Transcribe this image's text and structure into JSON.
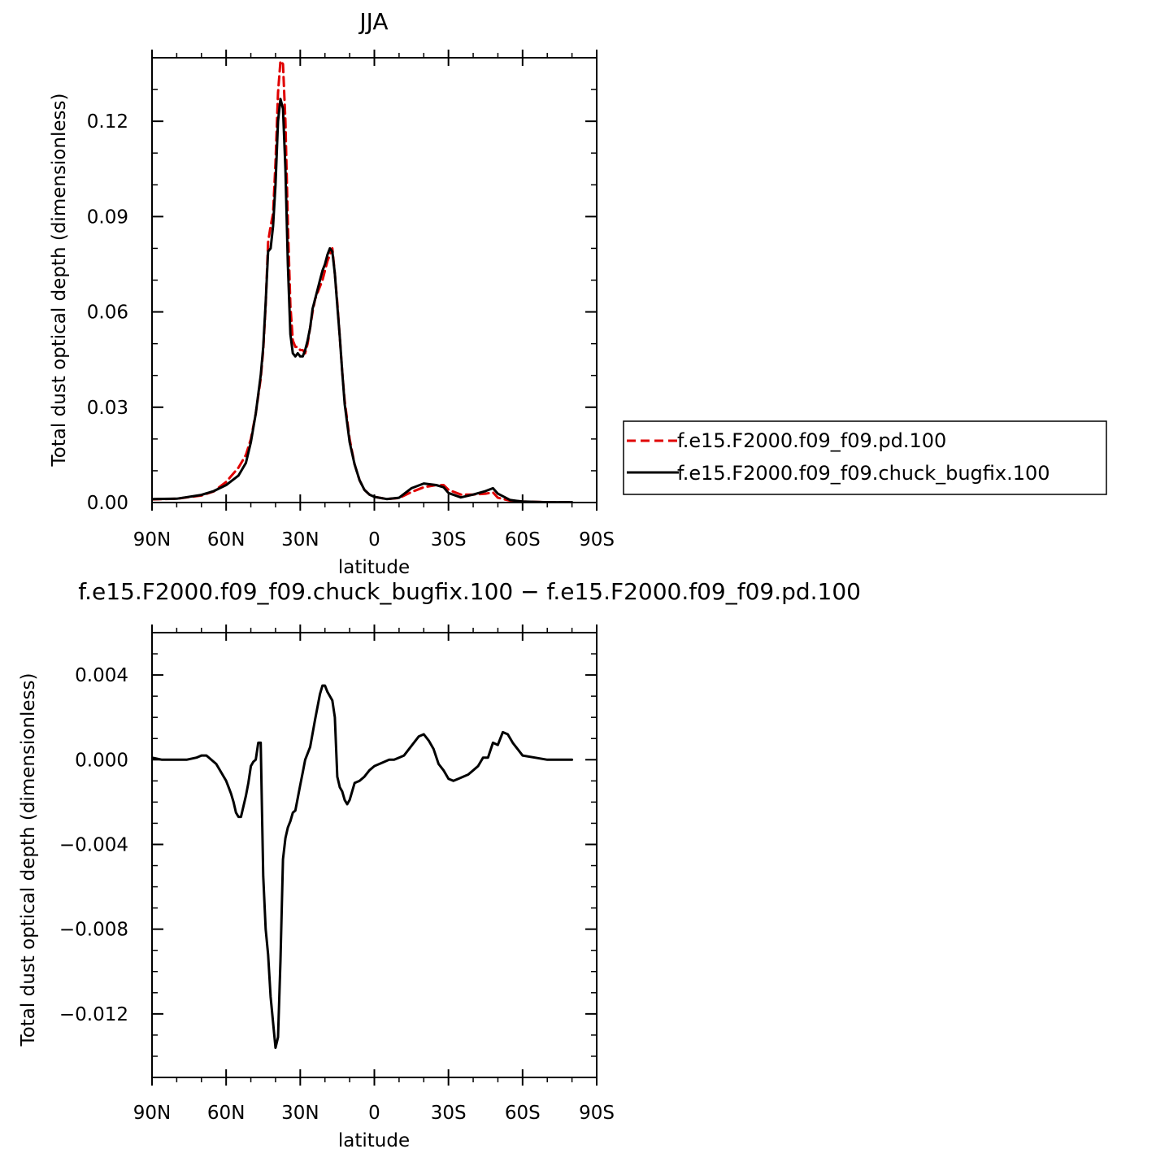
{
  "chart_data": [
    {
      "type": "line",
      "title": "JJA",
      "xlabel": "latitude",
      "ylabel": "Total dust optical depth (dimensionless)",
      "xlim": [
        90,
        -90
      ],
      "ylim": [
        0,
        0.14
      ],
      "x_ticks": [
        90,
        60,
        30,
        0,
        -30,
        -60,
        -90
      ],
      "x_tick_labels": [
        "90N",
        "60N",
        "30N",
        "0",
        "30S",
        "60S",
        "90S"
      ],
      "y_ticks": [
        0,
        0.03,
        0.06,
        0.09,
        0.12
      ],
      "y_tick_labels": [
        "0.00",
        "0.03",
        "0.06",
        "0.09",
        "0.12"
      ],
      "grid": false,
      "legend": "right",
      "series": [
        {
          "name": "f.e15.F2000.f09_f09.pd.100",
          "color": "#e00000",
          "dash": "dashed",
          "x": [
            90,
            80,
            70,
            65,
            60,
            55,
            52,
            50,
            48,
            46,
            45,
            44,
            43,
            42,
            41,
            40,
            39,
            38,
            37,
            36,
            35,
            34,
            33,
            32,
            31,
            30,
            29,
            28,
            27,
            26,
            25,
            24,
            23,
            22,
            21,
            20,
            19,
            18,
            17,
            16,
            15,
            14,
            13,
            12,
            10,
            8,
            6,
            4,
            2,
            0,
            -5,
            -10,
            -15,
            -20,
            -25,
            -28,
            -30,
            -35,
            -40,
            -45,
            -48,
            -50,
            -55,
            -60,
            -70,
            -80
          ],
          "y": [
            0.001,
            0.0012,
            0.0022,
            0.0035,
            0.0065,
            0.011,
            0.015,
            0.02,
            0.028,
            0.039,
            0.048,
            0.062,
            0.082,
            0.087,
            0.091,
            0.107,
            0.129,
            0.139,
            0.138,
            0.12,
            0.088,
            0.062,
            0.051,
            0.049,
            0.049,
            0.048,
            0.048,
            0.047,
            0.05,
            0.055,
            0.06,
            0.064,
            0.066,
            0.068,
            0.07,
            0.073,
            0.076,
            0.078,
            0.08,
            0.072,
            0.063,
            0.052,
            0.041,
            0.032,
            0.02,
            0.012,
            0.007,
            0.004,
            0.0025,
            0.0018,
            0.0011,
            0.0014,
            0.0033,
            0.0048,
            0.0055,
            0.0055,
            0.004,
            0.0025,
            0.0025,
            0.0028,
            0.0032,
            0.0015,
            0.0006,
            0.0003,
            0.0001,
            0.0001
          ]
        },
        {
          "name": "f.e15.F2000.f09_f09.chuck_bugfix.100",
          "color": "#000000",
          "dash": "solid",
          "x": [
            90,
            80,
            70,
            65,
            60,
            55,
            52,
            50,
            48,
            46,
            45,
            44,
            43,
            42,
            41,
            40,
            39,
            38,
            37,
            36,
            35,
            34,
            33,
            32,
            31,
            30,
            29,
            28,
            27,
            26,
            25,
            24,
            23,
            22,
            21,
            20,
            19,
            18,
            17,
            16,
            15,
            14,
            13,
            12,
            10,
            8,
            6,
            4,
            2,
            0,
            -5,
            -10,
            -15,
            -20,
            -25,
            -28,
            -30,
            -35,
            -40,
            -45,
            -48,
            -50,
            -55,
            -60,
            -70,
            -80
          ],
          "y": [
            0.0011,
            0.0012,
            0.0024,
            0.0036,
            0.0055,
            0.0085,
            0.0125,
            0.019,
            0.028,
            0.04,
            0.049,
            0.063,
            0.079,
            0.08,
            0.087,
            0.1,
            0.12,
            0.127,
            0.124,
            0.105,
            0.075,
            0.053,
            0.047,
            0.046,
            0.047,
            0.046,
            0.046,
            0.048,
            0.051,
            0.055,
            0.061,
            0.064,
            0.067,
            0.07,
            0.073,
            0.075,
            0.078,
            0.08,
            0.079,
            0.072,
            0.062,
            0.052,
            0.041,
            0.031,
            0.019,
            0.012,
            0.007,
            0.004,
            0.0025,
            0.0018,
            0.0011,
            0.0015,
            0.0045,
            0.006,
            0.0055,
            0.0048,
            0.003,
            0.0016,
            0.0025,
            0.0036,
            0.0045,
            0.0028,
            0.0008,
            0.0003,
            0.0001,
            0.0001
          ]
        }
      ]
    },
    {
      "type": "line",
      "title": "f.e15.F2000.f09_f09.chuck_bugfix.100 − f.e15.F2000.f09_f09.pd.100",
      "xlabel": "latitude",
      "ylabel": "Total dust optical depth (dimensionless)",
      "xlim": [
        90,
        -90
      ],
      "ylim": [
        -0.015,
        0.006
      ],
      "x_ticks": [
        90,
        60,
        30,
        0,
        -30,
        -60,
        -90
      ],
      "x_tick_labels": [
        "90N",
        "60N",
        "30N",
        "0",
        "30S",
        "60S",
        "90S"
      ],
      "y_ticks": [
        -0.012,
        -0.008,
        -0.004,
        0,
        0.004
      ],
      "y_tick_labels": [
        "−0.012",
        "−0.008",
        "−0.004",
        "0.000",
        "0.004"
      ],
      "grid": false,
      "series": [
        {
          "color": "#000000",
          "dash": "solid",
          "x": [
            90,
            86,
            80,
            76,
            72,
            70,
            68,
            66,
            64,
            62,
            60,
            59,
            58,
            57,
            56,
            55,
            54,
            52,
            51,
            50,
            49,
            48,
            47,
            46,
            45,
            44,
            43,
            42,
            41,
            40,
            39,
            38,
            37,
            36,
            35,
            34,
            33,
            32,
            31,
            30,
            29,
            28,
            26,
            24,
            22,
            21,
            20,
            19,
            18,
            17,
            16,
            15,
            14,
            13,
            12,
            11,
            10,
            8,
            6,
            4,
            2,
            0,
            -2,
            -4,
            -6,
            -8,
            -10,
            -12,
            -14,
            -16,
            -18,
            -20,
            -22,
            -24,
            -26,
            -28,
            -30,
            -32,
            -34,
            -36,
            -38,
            -40,
            -42,
            -44,
            -46,
            -48,
            -50,
            -52,
            -54,
            -56,
            -60,
            -65,
            -70,
            -80
          ],
          "y": [
            0.0001,
            0.0,
            0.0,
            0.0,
            0.0001,
            0.0002,
            0.0002,
            0.0,
            -0.0002,
            -0.0006,
            -0.001,
            -0.0013,
            -0.0016,
            -0.002,
            -0.0025,
            -0.0027,
            -0.0027,
            -0.0017,
            -0.0011,
            -0.0003,
            -0.0001,
            0.0,
            0.0008,
            0.0008,
            -0.0055,
            -0.008,
            -0.0092,
            -0.0112,
            -0.0124,
            -0.0136,
            -0.0131,
            -0.0095,
            -0.0047,
            -0.0037,
            -0.0032,
            -0.0029,
            -0.0025,
            -0.0024,
            -0.0018,
            -0.0012,
            -0.0006,
            0.0,
            0.0006,
            0.0019,
            0.0031,
            0.0035,
            0.0035,
            0.0032,
            0.003,
            0.0028,
            0.002,
            -0.0008,
            -0.0013,
            -0.0015,
            -0.0019,
            -0.0021,
            -0.0019,
            -0.0011,
            -0.001,
            -0.0008,
            -0.0005,
            -0.0003,
            -0.0002,
            -0.0001,
            0.0,
            0.0,
            0.0001,
            0.0002,
            0.0005,
            0.0008,
            0.0011,
            0.0012,
            0.0009,
            0.0005,
            -0.0002,
            -0.0005,
            -0.0009,
            -0.001,
            -0.0009,
            -0.0008,
            -0.0007,
            -0.0005,
            -0.0003,
            0.0001,
            0.0001,
            0.0008,
            0.0007,
            0.0013,
            0.0012,
            0.0008,
            0.0002,
            0.0001,
            0.0,
            0.0
          ]
        }
      ]
    }
  ]
}
